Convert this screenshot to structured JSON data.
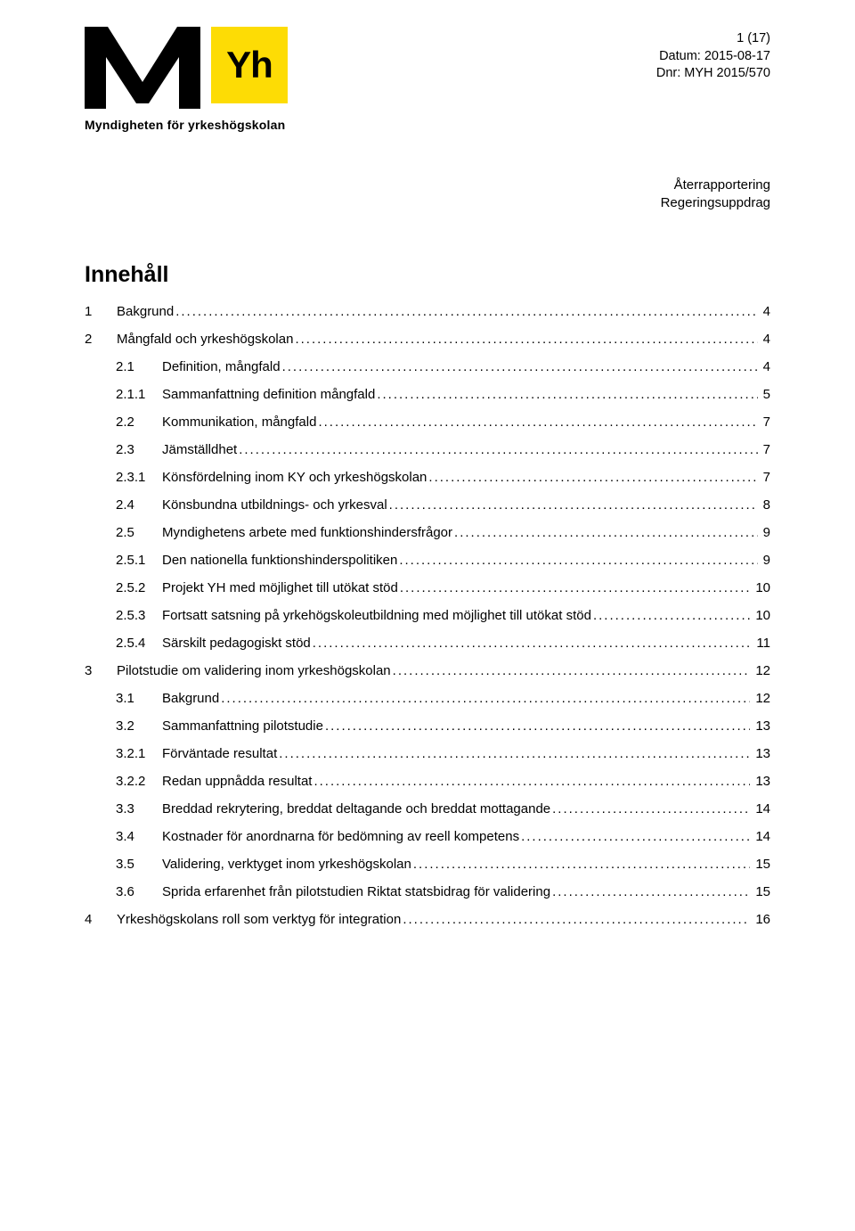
{
  "meta": {
    "page_indicator": "1 (17)",
    "date_label": "Datum: 2015-08-17",
    "dnr_label": "Dnr: MYH 2015/570"
  },
  "logo": {
    "yh_text": "Yh",
    "yh_bg": "#fddc05",
    "yh_fg": "#000000",
    "subtitle": "Myndigheten för yrkeshögskolan"
  },
  "report_type": {
    "line1": "Återrapportering",
    "line2": "Regeringsuppdrag"
  },
  "title": "Innehåll",
  "toc": [
    {
      "level": 1,
      "num": "1",
      "label": "Bakgrund",
      "page": "4"
    },
    {
      "level": 1,
      "num": "2",
      "label": "Mångfald och yrkeshögskolan",
      "page": "4"
    },
    {
      "level": 2,
      "num": "2.1",
      "label": "Definition, mångfald",
      "page": "4"
    },
    {
      "level": 3,
      "num": "2.1.1",
      "label": "Sammanfattning definition mångfald",
      "page": "5"
    },
    {
      "level": 2,
      "num": "2.2",
      "label": "Kommunikation, mångfald",
      "page": "7"
    },
    {
      "level": 2,
      "num": "2.3",
      "label": "Jämställdhet",
      "page": "7"
    },
    {
      "level": 3,
      "num": "2.3.1",
      "label": "Könsfördelning inom KY och yrkeshögskolan",
      "page": "7"
    },
    {
      "level": 2,
      "num": "2.4",
      "label": "Könsbundna utbildnings- och yrkesval",
      "page": "8"
    },
    {
      "level": 2,
      "num": "2.5",
      "label": "Myndighetens arbete med funktionshindersfrågor",
      "page": "9"
    },
    {
      "level": 3,
      "num": "2.5.1",
      "label": "Den nationella funktionshinderspolitiken",
      "page": "9"
    },
    {
      "level": 3,
      "num": "2.5.2",
      "label": "Projekt YH med möjlighet till utökat stöd",
      "page": "10"
    },
    {
      "level": 3,
      "num": "2.5.3",
      "label": "Fortsatt satsning på yrkehögskoleutbildning med möjlighet till  utökat stöd",
      "page": "10"
    },
    {
      "level": 3,
      "num": "2.5.4",
      "label": "Särskilt pedagogiskt stöd",
      "page": "11"
    },
    {
      "level": 1,
      "num": "3",
      "label": "Pilotstudie om validering inom yrkeshögskolan",
      "page": "12"
    },
    {
      "level": 2,
      "num": "3.1",
      "label": "Bakgrund",
      "page": "12"
    },
    {
      "level": 2,
      "num": "3.2",
      "label": "Sammanfattning pilotstudie",
      "page": "13"
    },
    {
      "level": 3,
      "num": "3.2.1",
      "label": "Förväntade resultat",
      "page": "13"
    },
    {
      "level": 3,
      "num": "3.2.2",
      "label": "Redan uppnådda resultat",
      "page": "13"
    },
    {
      "level": 2,
      "num": "3.3",
      "label": "Breddad rekrytering, breddat deltagande och breddat mottagande",
      "page": "14"
    },
    {
      "level": 2,
      "num": "3.4",
      "label": "Kostnader för anordnarna för bedömning av reell kompetens",
      "page": "14"
    },
    {
      "level": 2,
      "num": "3.5",
      "label": "Validering, verktyget inom yrkeshögskolan",
      "page": "15"
    },
    {
      "level": 2,
      "num": "3.6",
      "label": "Sprida erfarenhet från pilotstudien Riktat statsbidrag för validering",
      "page": "15"
    },
    {
      "level": 1,
      "num": "4",
      "label": "Yrkeshögskolans roll som verktyg för integration",
      "page": "16"
    }
  ]
}
